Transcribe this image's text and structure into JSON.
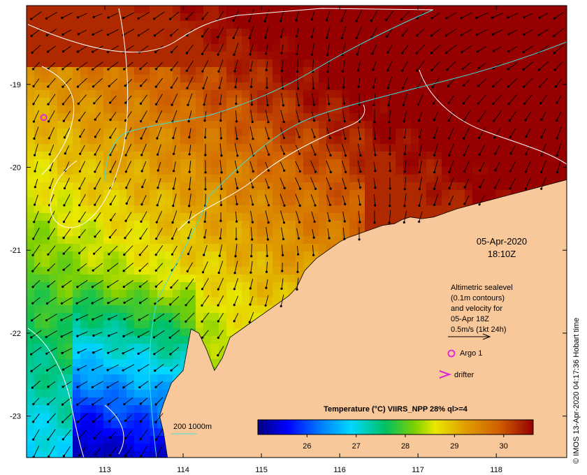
{
  "map": {
    "lon_range": [
      112.0,
      118.9
    ],
    "lat_range": [
      -23.5,
      -18.05
    ],
    "lon_ticks": [
      {
        "value": 113,
        "label": "113"
      },
      {
        "value": 114,
        "label": "114"
      },
      {
        "value": 115,
        "label": "115"
      },
      {
        "value": 116,
        "label": "116"
      },
      {
        "value": 117,
        "label": "117"
      },
      {
        "value": 118,
        "label": "118"
      }
    ],
    "lat_ticks": [
      {
        "value": -19,
        "label": "-19"
      },
      {
        "value": -20,
        "label": "-20"
      },
      {
        "value": -21,
        "label": "-21"
      },
      {
        "value": -22,
        "label": "-22"
      },
      {
        "value": -23,
        "label": "-23"
      }
    ],
    "land_color": "#f9c89a",
    "coastline": [
      [
        118.9,
        -20.15
      ],
      [
        118.7,
        -20.2
      ],
      [
        118.5,
        -20.25
      ],
      [
        118.3,
        -20.3
      ],
      [
        118.1,
        -20.35
      ],
      [
        117.9,
        -20.4
      ],
      [
        117.7,
        -20.45
      ],
      [
        117.5,
        -20.5
      ],
      [
        117.35,
        -20.55
      ],
      [
        117.2,
        -20.6
      ],
      [
        117.05,
        -20.62
      ],
      [
        116.9,
        -20.6
      ],
      [
        116.8,
        -20.63
      ],
      [
        116.7,
        -20.68
      ],
      [
        116.55,
        -20.7
      ],
      [
        116.4,
        -20.75
      ],
      [
        116.25,
        -20.8
      ],
      [
        116.1,
        -20.85
      ],
      [
        116.0,
        -20.9
      ],
      [
        115.85,
        -21.0
      ],
      [
        115.7,
        -21.1
      ],
      [
        115.55,
        -21.25
      ],
      [
        115.45,
        -21.45
      ],
      [
        115.35,
        -21.55
      ],
      [
        115.2,
        -21.65
      ],
      [
        115.05,
        -21.75
      ],
      [
        114.9,
        -21.85
      ],
      [
        114.75,
        -21.95
      ],
      [
        114.6,
        -22.05
      ],
      [
        114.5,
        -22.3
      ],
      [
        114.4,
        -22.45
      ],
      [
        114.3,
        -22.2
      ],
      [
        114.2,
        -22.0
      ],
      [
        114.1,
        -21.95
      ],
      [
        114.05,
        -22.2
      ],
      [
        114.0,
        -22.45
      ],
      [
        113.85,
        -22.6
      ],
      [
        113.75,
        -22.85
      ],
      [
        113.7,
        -23.0
      ],
      [
        113.75,
        -23.2
      ],
      [
        113.8,
        -23.5
      ]
    ],
    "temperature_colorbar": {
      "title": "Temperature (°C) VIIRS_NPP 28% ql>=4",
      "range": [
        25.0,
        30.6
      ],
      "stops": [
        {
          "value": 25.0,
          "color": "#00007f"
        },
        {
          "value": 25.6,
          "color": "#0000ff"
        },
        {
          "value": 26.3,
          "color": "#0080ff"
        },
        {
          "value": 26.9,
          "color": "#00d8ff"
        },
        {
          "value": 27.6,
          "color": "#00c060"
        },
        {
          "value": 28.2,
          "color": "#80d000"
        },
        {
          "value": 28.6,
          "color": "#e8e800"
        },
        {
          "value": 29.2,
          "color": "#e0a000"
        },
        {
          "value": 29.9,
          "color": "#d06000"
        },
        {
          "value": 30.6,
          "color": "#960000"
        }
      ],
      "ticks": [
        {
          "value": 26,
          "label": "26"
        },
        {
          "value": 27,
          "label": "27"
        },
        {
          "value": 28,
          "label": "28"
        },
        {
          "value": 29,
          "label": "29"
        },
        {
          "value": 30,
          "label": "30"
        }
      ]
    },
    "contour_legend": {
      "label": "200  1000m",
      "color": "#3fe0e0"
    },
    "date_line1": "05-Apr-2020",
    "date_line2": "18:10Z",
    "velocity_note": [
      "Altimetric sealevel",
      "(0.1m contours)",
      "and velocity for",
      "05-Apr 18Z",
      "0.5m/s (1kt 24h)"
    ],
    "argo_label": "Argo 1",
    "drifter_label": "drifter",
    "argo_float": {
      "lon": 112.22,
      "lat": -19.4,
      "color": "#e020e0"
    },
    "credit": "© IMOS 13-Apr-2020 04:17:36 Hobart time"
  }
}
